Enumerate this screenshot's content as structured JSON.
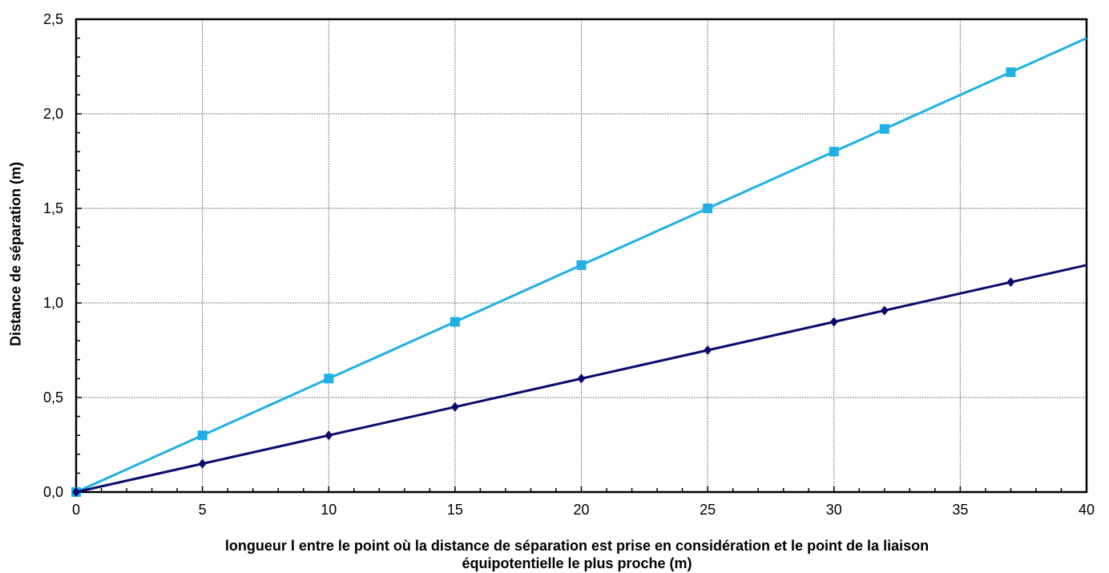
{
  "chart_data": {
    "type": "line",
    "xlabel_line1": "longueur l entre le point où la distance de séparation est prise en considération et le point de la liaison",
    "xlabel_line2": "équipotentielle le plus proche (m)",
    "ylabel": "Distance de séparation (m)",
    "xlim": [
      0,
      40
    ],
    "ylim": [
      0,
      2.5
    ],
    "x_ticks": [
      "0",
      "5",
      "10",
      "15",
      "20",
      "25",
      "30",
      "35",
      "40"
    ],
    "y_ticks": [
      "0,0",
      "0,5",
      "1,0",
      "1,5",
      "2,0",
      "2,5"
    ],
    "grid": true,
    "legend": "none",
    "series": [
      {
        "color": "#1fb0e6",
        "marker": "square",
        "x": [
          0,
          5,
          10,
          15,
          20,
          25,
          30,
          32,
          37,
          40
        ],
        "y": [
          0,
          0.3,
          0.6,
          0.9,
          1.2,
          1.5,
          1.8,
          1.92,
          2.22,
          2.4
        ],
        "markers": [
          true,
          true,
          true,
          true,
          true,
          true,
          true,
          true,
          true,
          false
        ]
      },
      {
        "color": "#0a0a6e",
        "marker": "diamond",
        "x": [
          0,
          5,
          10,
          15,
          20,
          25,
          30,
          32,
          37,
          40
        ],
        "y": [
          0,
          0.15,
          0.3,
          0.45,
          0.6,
          0.75,
          0.9,
          0.96,
          1.11,
          1.2
        ],
        "markers": [
          true,
          true,
          true,
          true,
          true,
          true,
          true,
          true,
          true,
          false
        ]
      }
    ]
  }
}
